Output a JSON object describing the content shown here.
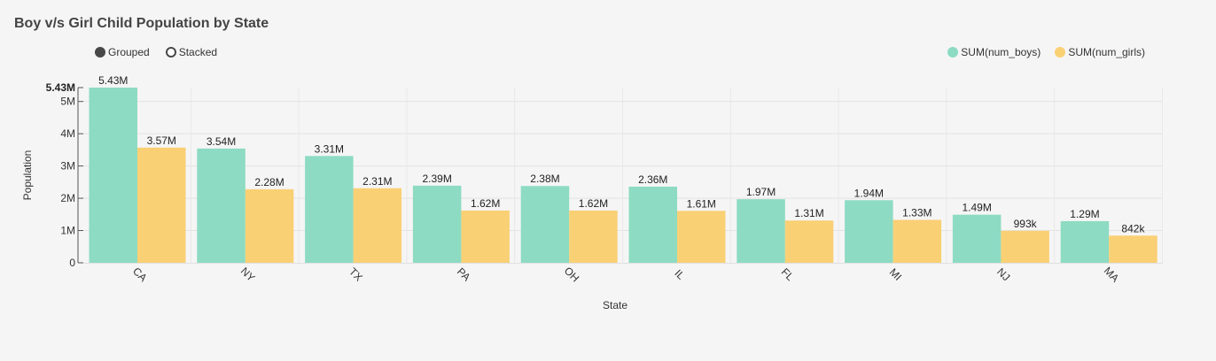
{
  "header": {
    "title": "Boy v/s Girl Child Population by State"
  },
  "controls": {
    "grouped_label": "Grouped",
    "stacked_label": "Stacked",
    "selected": "Grouped"
  },
  "chart_data": {
    "type": "bar",
    "title": "Boy v/s Girl Child Population by State",
    "xlabel": "State",
    "ylabel": "Population",
    "categories": [
      "CA",
      "NY",
      "TX",
      "PA",
      "OH",
      "IL",
      "FL",
      "MI",
      "NJ",
      "MA"
    ],
    "series": [
      {
        "name": "SUM(num_boys)",
        "color": "#8ddbc2",
        "values": [
          5430000,
          3540000,
          3310000,
          2390000,
          2380000,
          2360000,
          1970000,
          1940000,
          1490000,
          1290000
        ],
        "labels": [
          "5.43M",
          "3.54M",
          "3.31M",
          "2.39M",
          "2.38M",
          "2.36M",
          "1.97M",
          "1.94M",
          "1.49M",
          "1.29M"
        ]
      },
      {
        "name": "SUM(num_girls)",
        "color": "#fad075",
        "values": [
          3570000,
          2280000,
          2310000,
          1620000,
          1620000,
          1610000,
          1310000,
          1330000,
          993000,
          842000
        ],
        "labels": [
          "3.57M",
          "2.28M",
          "2.31M",
          "1.62M",
          "1.62M",
          "1.61M",
          "1.31M",
          "1.33M",
          "993k",
          "842k"
        ]
      }
    ],
    "ylim": [
      0,
      5430000
    ],
    "yticks": [
      0,
      1000000,
      2000000,
      3000000,
      4000000,
      5000000
    ],
    "ytick_labels": [
      "0",
      "1M",
      "2M",
      "3M",
      "4M",
      "5M"
    ],
    "ymax_label": "5.43M",
    "grid": true,
    "legend_position": "top-right",
    "x_tick_rotation": 45
  }
}
